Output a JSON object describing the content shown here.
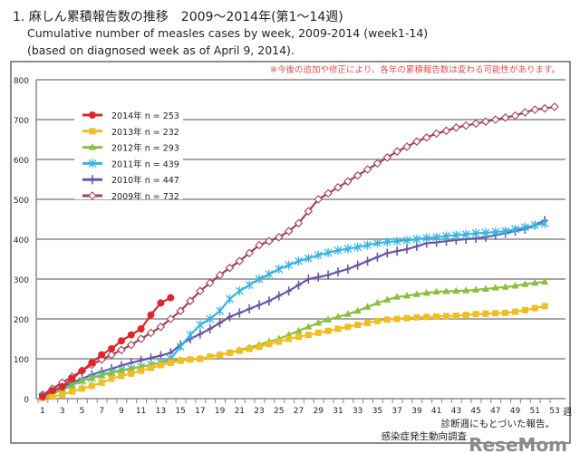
{
  "title_jp": "1. 麻しん累積報告数の推移　2009〜2014年(第1〜14週)",
  "title_en": "Cumulative number of measles cases by week, 2009-2014 (week1-14)",
  "subtitle": "(based on diagnosed week as of  April 9, 2014).",
  "chart_data": {
    "type": "line",
    "note": "※今後の追加や修正により、各年の累積報告数は変わる可能性があります。",
    "xunit": "週",
    "footer1": "診断週にもとづいた報告。",
    "footer2": "感染症発生動向調査",
    "watermark": "ReseMom",
    "ylim": [
      0,
      800
    ],
    "yticks": [
      0,
      100,
      200,
      300,
      400,
      500,
      600,
      700,
      800
    ],
    "xlim": [
      1,
      53
    ],
    "xtick_labels": [
      "1",
      "3",
      "5",
      "7",
      "9",
      "11",
      "13",
      "15",
      "17",
      "19",
      "21",
      "23",
      "25",
      "27",
      "29",
      "31",
      "33",
      "35",
      "37",
      "39",
      "41",
      "43",
      "45",
      "47",
      "49",
      "51",
      "53"
    ],
    "grid": true,
    "legend_position": "top-left",
    "series": [
      {
        "name": "2014年 n = 253",
        "color": "#e0262a",
        "marker": "circle",
        "values": [
          5,
          20,
          30,
          50,
          70,
          90,
          110,
          125,
          145,
          160,
          175,
          210,
          240,
          253
        ]
      },
      {
        "name": "2013年 n = 232",
        "color": "#f0bd22",
        "marker": "square",
        "values": [
          2,
          5,
          10,
          18,
          25,
          32,
          40,
          50,
          57,
          63,
          70,
          77,
          84,
          90,
          95,
          98,
          100,
          105,
          110,
          115,
          120,
          125,
          130,
          137,
          143,
          150,
          155,
          160,
          165,
          170,
          175,
          180,
          185,
          190,
          195,
          198,
          200,
          202,
          204,
          205,
          206,
          207,
          208,
          210,
          212,
          213,
          214,
          215,
          218,
          222,
          227,
          232
        ]
      },
      {
        "name": "2012年 n = 293",
        "color": "#8cbf3f",
        "marker": "triangle",
        "values": [
          3,
          12,
          22,
          33,
          45,
          52,
          58,
          65,
          70,
          75,
          80,
          85,
          90,
          95,
          97,
          99,
          100,
          105,
          110,
          115,
          122,
          128,
          135,
          143,
          150,
          160,
          170,
          180,
          190,
          198,
          205,
          212,
          220,
          230,
          240,
          248,
          255,
          258,
          262,
          265,
          268,
          269,
          270,
          271,
          273,
          275,
          278,
          280,
          283,
          287,
          290,
          293
        ]
      },
      {
        "name": "2011年 n = 439",
        "color": "#35b5e5",
        "marker": "star",
        "values": [
          5,
          15,
          25,
          35,
          45,
          52,
          60,
          66,
          72,
          75,
          80,
          85,
          90,
          100,
          130,
          160,
          185,
          200,
          220,
          250,
          270,
          285,
          300,
          312,
          325,
          335,
          345,
          352,
          360,
          366,
          372,
          376,
          380,
          385,
          390,
          393,
          395,
          397,
          400,
          403,
          405,
          408,
          410,
          412,
          415,
          416,
          418,
          420,
          425,
          430,
          435,
          439
        ]
      },
      {
        "name": "2010年 n = 447",
        "color": "#6b55a3",
        "marker": "plus",
        "values": [
          5,
          15,
          28,
          40,
          50,
          60,
          68,
          75,
          83,
          90,
          96,
          102,
          108,
          115,
          135,
          150,
          162,
          175,
          190,
          205,
          215,
          225,
          235,
          245,
          258,
          270,
          285,
          300,
          305,
          310,
          318,
          325,
          335,
          345,
          355,
          365,
          370,
          375,
          382,
          390,
          392,
          395,
          398,
          400,
          402,
          405,
          410,
          415,
          420,
          425,
          435,
          447
        ]
      },
      {
        "name": "2009年 n = 732",
        "color": "#a3405f",
        "marker": "diamond",
        "values": [
          10,
          25,
          40,
          55,
          70,
          85,
          98,
          110,
          122,
          135,
          150,
          165,
          180,
          200,
          220,
          245,
          270,
          290,
          310,
          328,
          345,
          365,
          385,
          395,
          405,
          420,
          440,
          470,
          500,
          515,
          530,
          545,
          560,
          575,
          590,
          605,
          620,
          632,
          645,
          655,
          665,
          672,
          680,
          685,
          690,
          695,
          700,
          705,
          710,
          718,
          725,
          728,
          732
        ]
      }
    ]
  }
}
